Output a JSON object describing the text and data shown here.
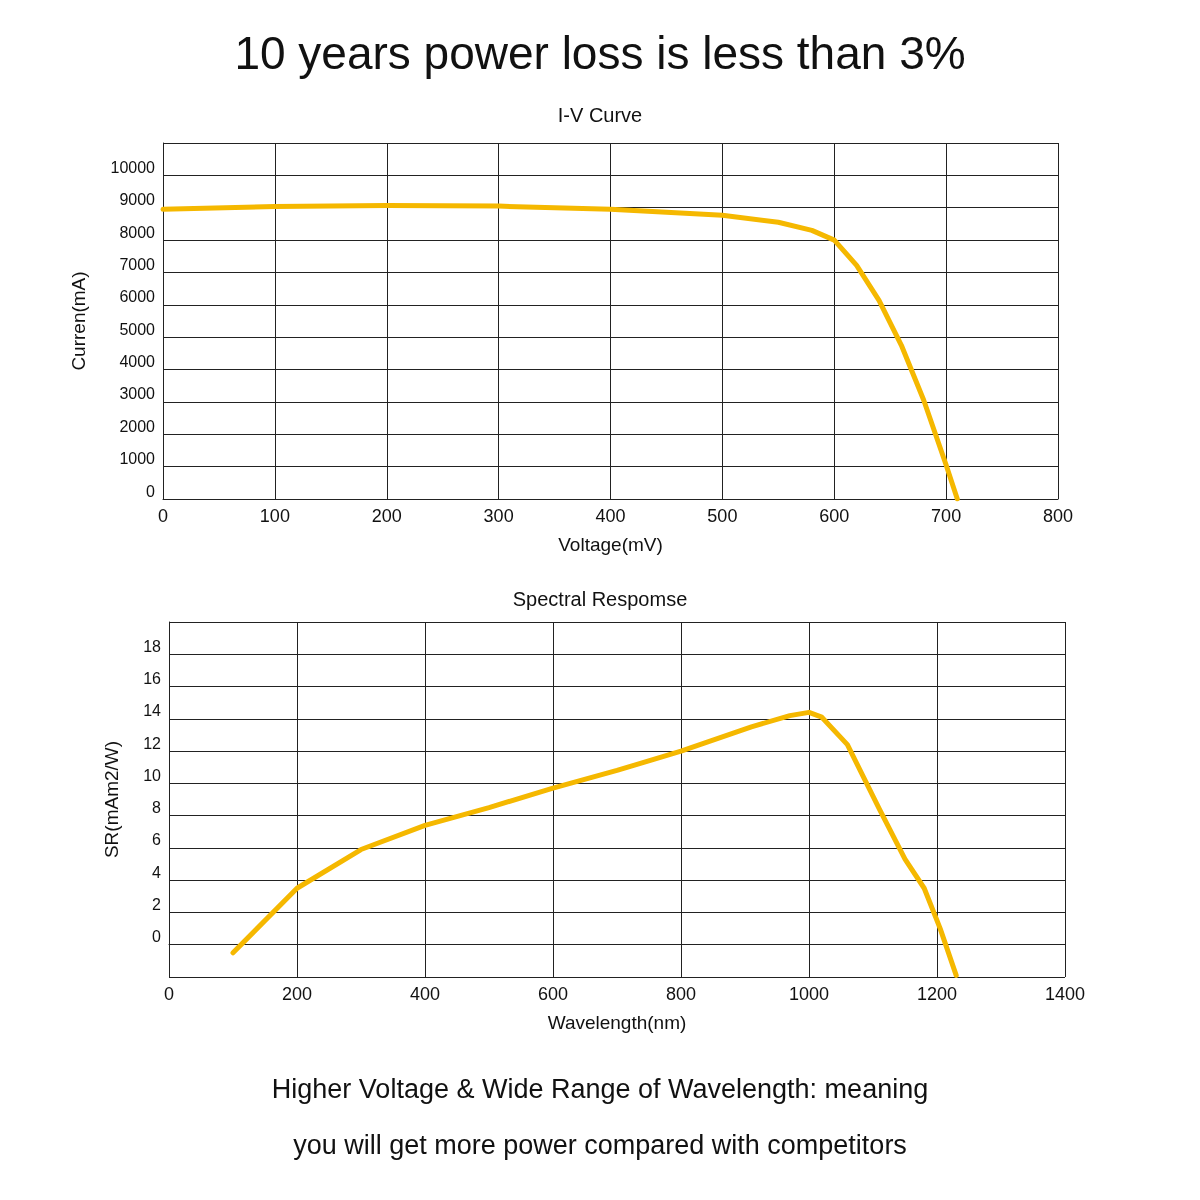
{
  "chart_data": [
    {
      "type": "line",
      "title": "10 years power loss is less than 3%",
      "subtitle": "I-V Curve",
      "xlabel": "Voltage(mV)",
      "ylabel": "Curren(mA)",
      "x": [
        0,
        100,
        200,
        300,
        400,
        500,
        550,
        580,
        600,
        620,
        640,
        660,
        680,
        700,
        710
      ],
      "series": [
        {
          "color": "#f5b800",
          "values": [
            8950,
            9040,
            9070,
            9050,
            8950,
            8770,
            8550,
            8300,
            8000,
            7220,
            6140,
            4750,
            3050,
            1050,
            0
          ]
        }
      ],
      "xlim": [
        0,
        800
      ],
      "xticks": [
        0,
        100,
        200,
        300,
        400,
        500,
        600,
        700,
        800
      ],
      "ylim": [
        0,
        11000
      ],
      "yticks": [
        0,
        1000,
        2000,
        3000,
        4000,
        5000,
        6000,
        7000,
        8000,
        9000,
        10000,
        {
          "value": 11000,
          "label": null
        }
      ],
      "grid": true,
      "legend": false,
      "marker": "none",
      "line_style": "solid"
    },
    {
      "type": "line",
      "title": "Spectral Respomse",
      "xlabel": "Wavelength(nm)",
      "ylabel": "SR(mAm2/W)",
      "x": [
        100,
        200,
        300,
        400,
        500,
        600,
        700,
        800,
        910,
        970,
        1000,
        1020,
        1060,
        1110,
        1150,
        1180,
        1205,
        1230
      ],
      "series": [
        {
          "color": "#f5b800",
          "values": [
            -0.5,
            3.5,
            5.9,
            7.4,
            8.5,
            9.7,
            10.8,
            12.0,
            13.5,
            14.2,
            14.4,
            14.1,
            12.4,
            8.4,
            5.3,
            3.5,
            1.0,
            -1.9
          ]
        }
      ],
      "xlim": [
        0,
        1400
      ],
      "xticks": [
        0,
        200,
        400,
        600,
        800,
        1000,
        1200,
        1400
      ],
      "ylim": [
        -2,
        20
      ],
      "yticks": [
        {
          "value": -2,
          "label": null
        },
        0,
        2,
        4,
        6,
        8,
        10,
        12,
        14,
        16,
        18,
        {
          "value": 20,
          "label": null
        }
      ],
      "grid": true,
      "legend": false,
      "marker": "none",
      "line_style": "solid",
      "annotations": [
        "Higher Voltage & Wide Range of Wavelength: meaning",
        "you will get more power compared with competitors"
      ]
    }
  ]
}
